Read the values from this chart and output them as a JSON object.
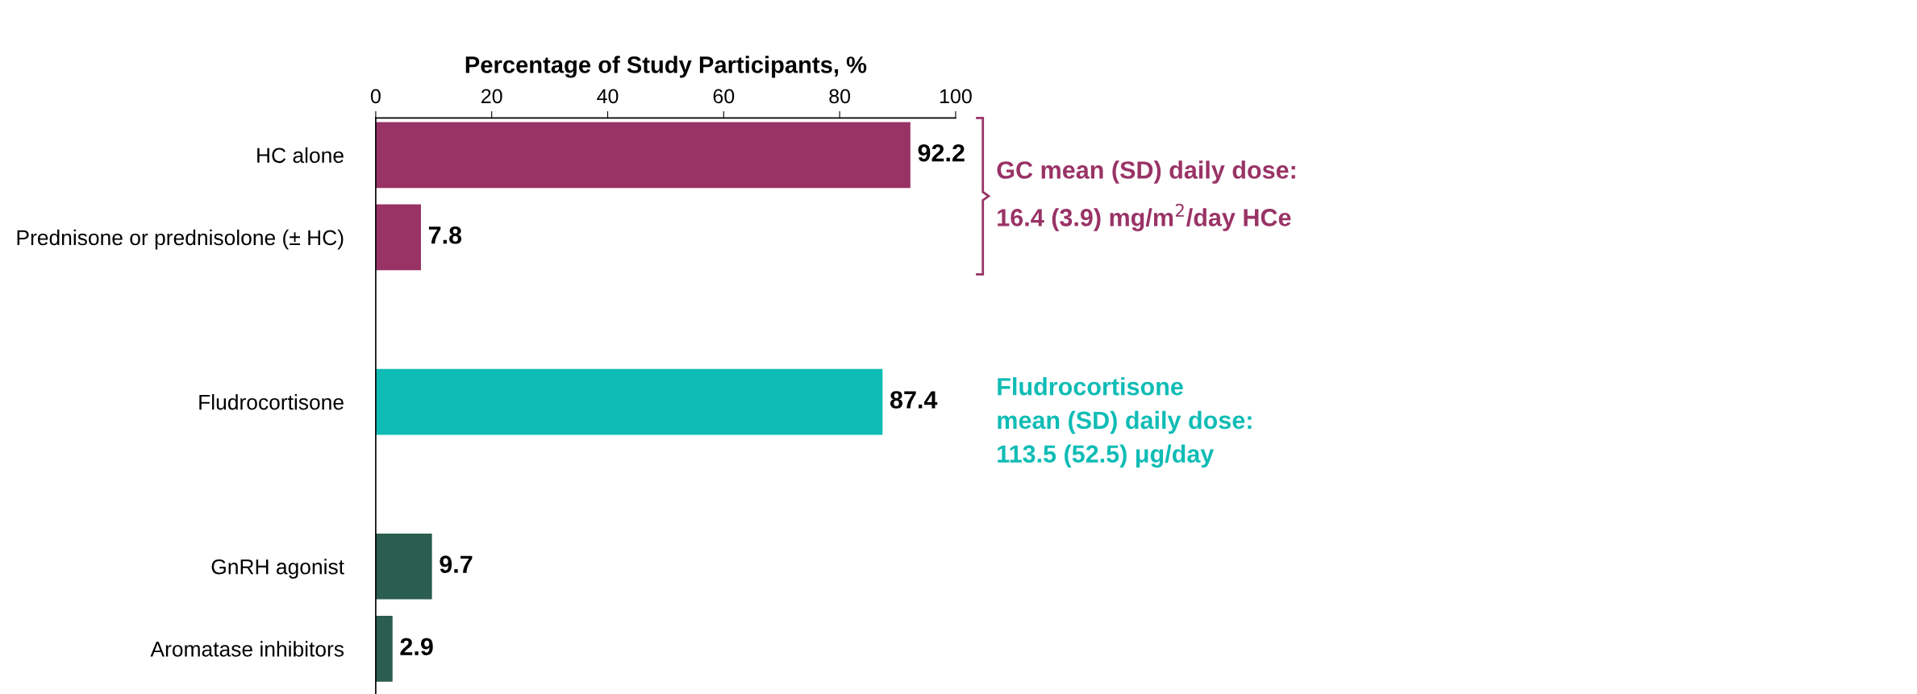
{
  "chart_data": {
    "type": "bar",
    "orientation": "horizontal",
    "xlabel": "Percentage of Study Participants, %",
    "categories": [
      "HC alone",
      "Prednisone or prednisolone (± HC)",
      null,
      "Fludrocortisone",
      null,
      "GnRH agonist",
      "Aromatase inhibitors"
    ],
    "values": [
      92.2,
      7.8,
      null,
      87.4,
      null,
      9.7,
      2.9
    ],
    "colors": [
      "#993366",
      "#993366",
      null,
      "#0fbcb5",
      null,
      "#2b5e4f",
      "#2b5e4f"
    ],
    "xlim": [
      0,
      100
    ],
    "xticks": [
      0,
      20,
      40,
      60,
      80,
      100
    ],
    "grid": false,
    "data_labels": true,
    "annotations": [
      "GC mean (SD) daily dose:\n16.4 (3.9) mg/m$^{2}$/day HCe",
      "Fludrocortisone\nmean (SD) daily dose:\n113.5 (52.5) μg/day"
    ]
  }
}
